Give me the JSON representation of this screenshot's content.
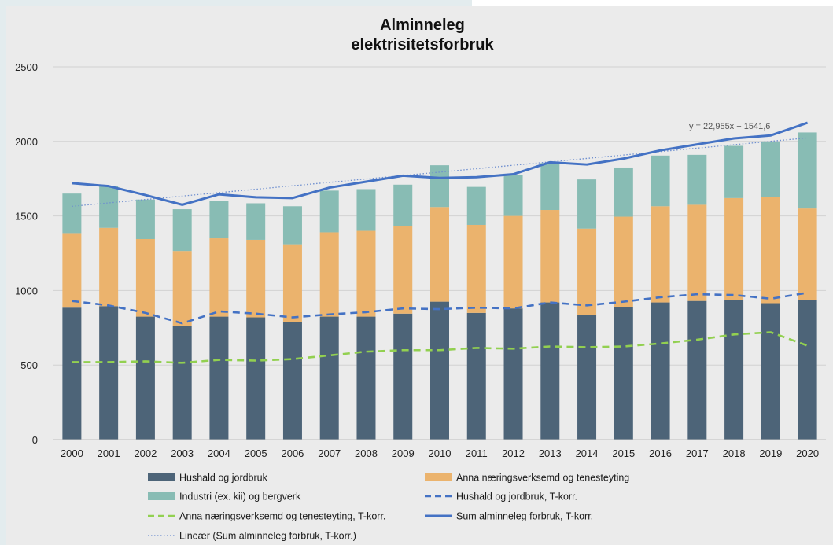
{
  "chart_data": {
    "type": "bar",
    "title": [
      "Alminneleg",
      "elektrisitetsforbruk"
    ],
    "categories": [
      "2000",
      "2001",
      "2002",
      "2003",
      "2004",
      "2005",
      "2006",
      "2007",
      "2008",
      "2009",
      "2010",
      "2011",
      "2012",
      "2013",
      "2014",
      "2015",
      "2016",
      "2017",
      "2018",
      "2019",
      "2020"
    ],
    "ylim": [
      0,
      2500
    ],
    "yticks": [
      0,
      500,
      1000,
      1500,
      2000,
      2500
    ],
    "grid": true,
    "legend_position": "bottom",
    "stacked": true,
    "series": [
      {
        "name": "Hushald og jordbruk",
        "kind": "bar",
        "color": "#4d6478",
        "values": [
          885,
          895,
          825,
          760,
          825,
          820,
          790,
          825,
          825,
          845,
          925,
          850,
          880,
          920,
          835,
          890,
          920,
          930,
          935,
          915,
          935
        ]
      },
      {
        "name": "Anna næringsverksemd og tenesteyting",
        "kind": "bar",
        "color": "#ebb36d",
        "values": [
          500,
          525,
          520,
          505,
          525,
          520,
          520,
          565,
          575,
          585,
          635,
          590,
          620,
          620,
          580,
          605,
          645,
          645,
          685,
          710,
          615
        ]
      },
      {
        "name": "Industri (ex. kii) og bergverk",
        "kind": "bar",
        "color": "#88bcb4",
        "values": [
          265,
          280,
          265,
          280,
          250,
          245,
          255,
          280,
          280,
          280,
          280,
          255,
          275,
          315,
          330,
          330,
          340,
          335,
          350,
          375,
          510
        ]
      },
      {
        "name": "Hushald og jordbruk, T-korr.",
        "kind": "line",
        "style": "dashed",
        "color": "#4472c4",
        "values": [
          930,
          900,
          850,
          780,
          860,
          845,
          820,
          840,
          855,
          880,
          875,
          885,
          880,
          920,
          900,
          925,
          955,
          975,
          970,
          945,
          985
        ]
      },
      {
        "name": "Anna næringsverksemd og tenesteyting,  T-korr.",
        "kind": "line",
        "style": "dashed",
        "color": "#92d050",
        "values": [
          520,
          520,
          525,
          515,
          535,
          530,
          540,
          565,
          590,
          600,
          600,
          615,
          610,
          625,
          620,
          625,
          645,
          670,
          705,
          720,
          630
        ]
      },
      {
        "name": "Sum alminneleg forbruk, T-korr.",
        "kind": "line",
        "style": "solid",
        "color": "#4472c4",
        "values": [
          1720,
          1700,
          1640,
          1575,
          1645,
          1625,
          1620,
          1690,
          1730,
          1770,
          1755,
          1760,
          1780,
          1860,
          1845,
          1885,
          1940,
          1980,
          2020,
          2040,
          2125
        ]
      }
    ],
    "trendline": {
      "name": "Lineær (Sum alminneleg forbruk, T-korr.)",
      "color": "#6f8fcf",
      "style": "dotted",
      "slope": 22.955,
      "intercept": 1541.6,
      "equation": "y = 22,955x + 1541,6"
    }
  }
}
